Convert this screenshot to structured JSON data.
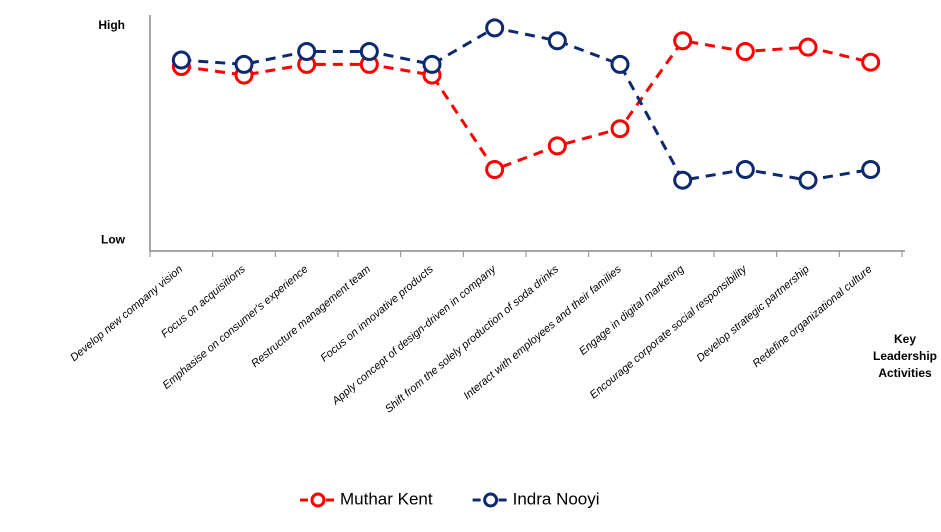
{
  "chart_data": {
    "type": "line",
    "categories": [
      "Develop new company vision",
      "Focus on acquisitions",
      "Emphasise on consumer's experience",
      "Restructure management team",
      "Focus on innovative products",
      "Apply concept of design-driven in company",
      "Shift from the solely production of soda drinks",
      "Interact with employees and their families",
      "Engage in digital marketing",
      "Encourage corporate social responsibility",
      "Develop strategic partnership",
      "Redefine organizational culture"
    ],
    "series": [
      {
        "name": "Muthar Kent",
        "color": "#ff0000",
        "values": [
          8.1,
          7.7,
          8.2,
          8.2,
          7.7,
          3.3,
          4.4,
          5.2,
          9.3,
          8.8,
          9.0,
          8.3
        ]
      },
      {
        "name": "Indra Nooyi",
        "color": "#0d2a6e",
        "values": [
          8.4,
          8.2,
          8.8,
          8.8,
          8.2,
          9.9,
          9.3,
          8.2,
          2.8,
          3.3,
          2.8,
          3.3
        ]
      }
    ],
    "x_label": "Key Leadership Activities",
    "ylim": [
      -0.5,
      10.5
    ],
    "yticks": [
      {
        "value": 0,
        "label": "Low"
      },
      {
        "value": 10,
        "label": "High"
      }
    ],
    "grid": false
  }
}
